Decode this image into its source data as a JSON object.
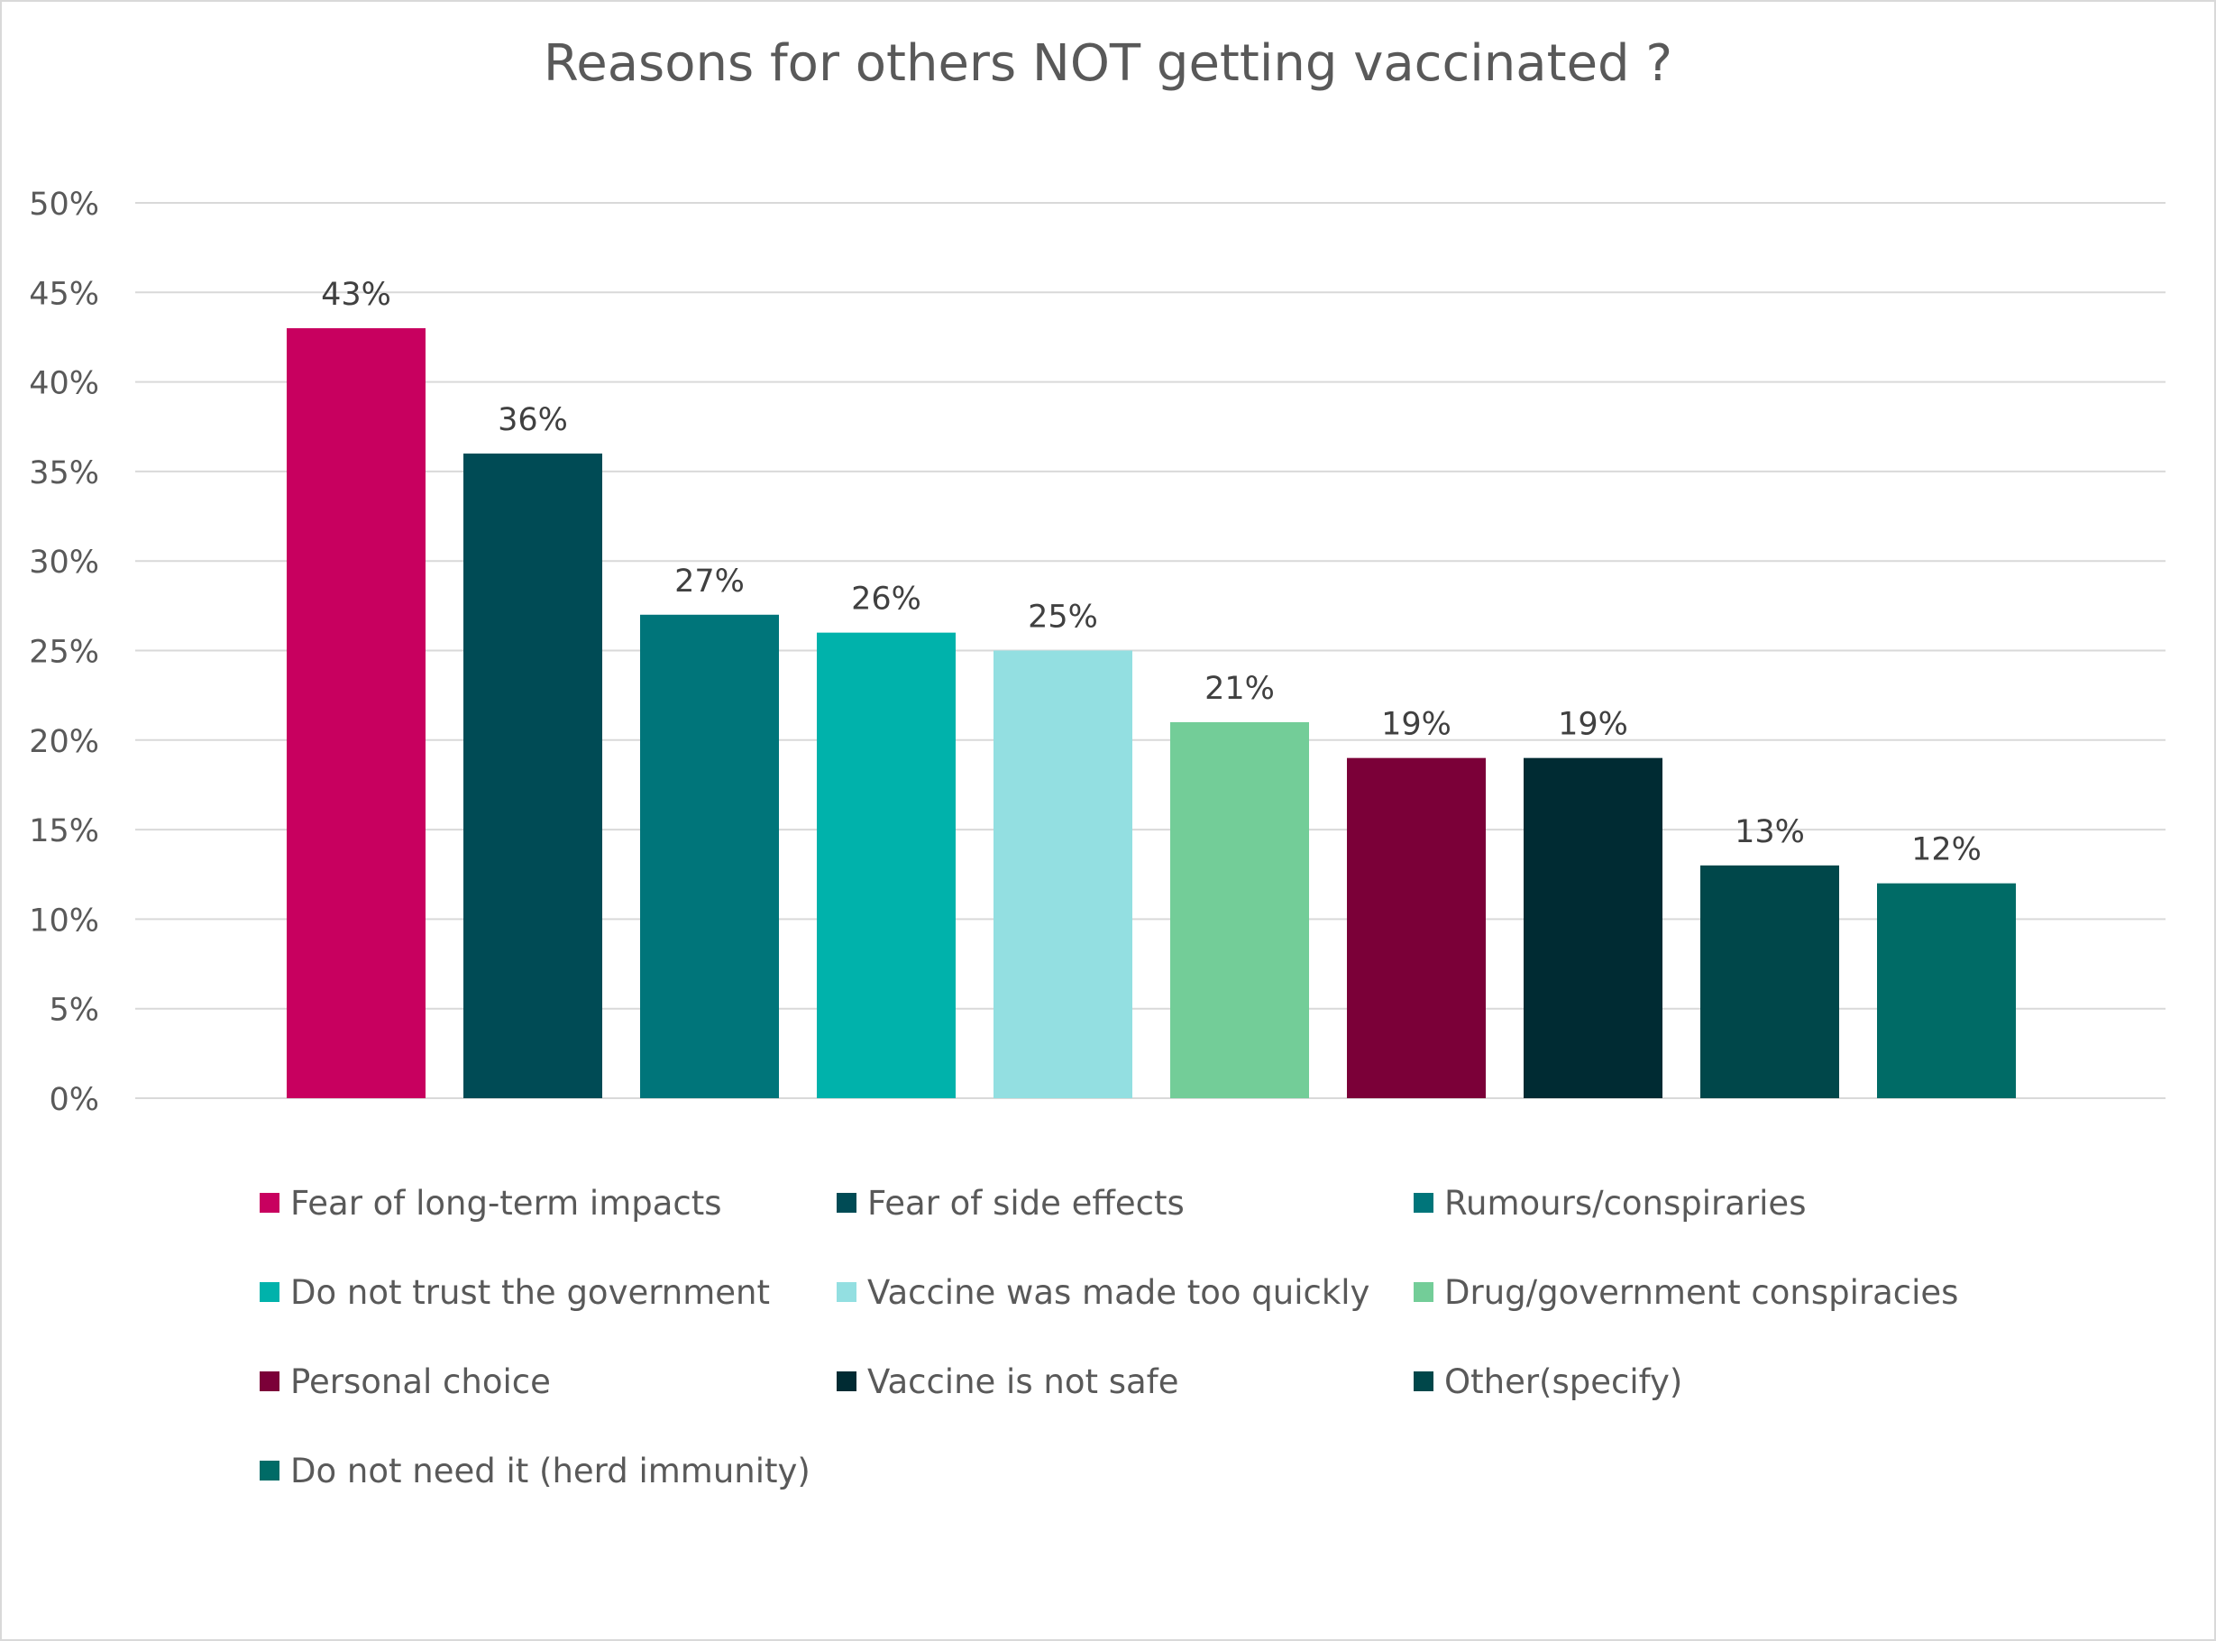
{
  "chart_data": {
    "type": "bar",
    "title": "Reasons for others NOT getting vaccinated ?",
    "categories": [
      "Fear of long-term impacts",
      "Fear of side effects",
      "Rumours/conspiraries",
      "Do not trust the government",
      "Vaccine was made too quickly",
      "Drug/government conspiracies",
      "Personal choice",
      "Vaccine is not safe",
      "Other(specify)",
      "Do not need it (herd immunity)"
    ],
    "values": [
      43,
      36,
      27,
      26,
      25,
      21,
      19,
      19,
      13,
      12
    ],
    "data_labels": [
      "43%",
      "36%",
      "27%",
      "26%",
      "25%",
      "21%",
      "19%",
      "19%",
      "13%",
      "12%"
    ],
    "colors": [
      "#c8005f",
      "#004b55",
      "#00757a",
      "#00b2ab",
      "#93dfe1",
      "#73cd98",
      "#7b0038",
      "#002b33",
      "#00474a",
      "#006b66"
    ],
    "ylim": [
      0,
      50
    ],
    "yticks": [
      0,
      5,
      10,
      15,
      20,
      25,
      30,
      35,
      40,
      45,
      50
    ],
    "ytick_labels": [
      "0%",
      "5%",
      "10%",
      "15%",
      "20%",
      "25%",
      "30%",
      "35%",
      "40%",
      "45%",
      "50%"
    ],
    "grid": true,
    "legend_position": "bottom",
    "xlabel": "",
    "ylabel": ""
  }
}
